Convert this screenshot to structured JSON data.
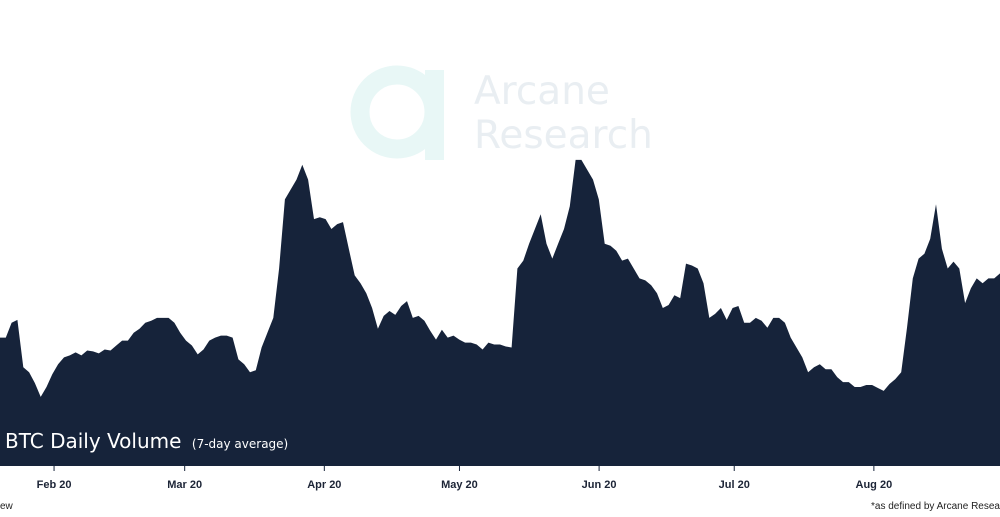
{
  "watermark": {
    "line1": "Arcane",
    "line2": "Research",
    "logo_icon": "arcane-a-logo-icon",
    "color": "#e9eef2",
    "logo_color": "#e8f7f6"
  },
  "footer": {
    "left_text": "ew",
    "right_text": "*as defined by Arcane Resea"
  },
  "chart_data": {
    "type": "area",
    "title": "BTC Daily Volume",
    "subtitle": "(7-day average)",
    "fill_color": "#16233a",
    "background": "#ffffff",
    "grid": false,
    "legend": "none",
    "x_start": "2020-01-20",
    "x_range": [
      "2020-01-20",
      "2020-08-29"
    ],
    "xticks": [
      {
        "date": "2020-02-01",
        "label": "Feb 20"
      },
      {
        "date": "2020-03-01",
        "label": "Mar 20"
      },
      {
        "date": "2020-04-01",
        "label": "Apr 20"
      },
      {
        "date": "2020-05-01",
        "label": "May 20"
      },
      {
        "date": "2020-06-01",
        "label": "Jun 20"
      },
      {
        "date": "2020-07-01",
        "label": "Jul 20"
      },
      {
        "date": "2020-08-01",
        "label": "Aug 20"
      }
    ],
    "ylim": [
      0,
      320
    ],
    "values": [
      130,
      130,
      145,
      148,
      100,
      95,
      84,
      70,
      80,
      93,
      103,
      110,
      112,
      115,
      112,
      117,
      116,
      114,
      118,
      117,
      122,
      127,
      127,
      135,
      139,
      145,
      147,
      150,
      150,
      150,
      145,
      135,
      127,
      122,
      113,
      118,
      127,
      130,
      132,
      132,
      130,
      108,
      103,
      95,
      97,
      120,
      135,
      150,
      200,
      270,
      280,
      290,
      305,
      290,
      250,
      252,
      250,
      240,
      245,
      247,
      220,
      193,
      185,
      175,
      160,
      139,
      152,
      157,
      153,
      162,
      167,
      150,
      152,
      147,
      137,
      128,
      138,
      130,
      132,
      128,
      125,
      125,
      123,
      118,
      125,
      123,
      123,
      121,
      120,
      200,
      208,
      225,
      240,
      255,
      225,
      210,
      225,
      240,
      263,
      310,
      310,
      300,
      290,
      270,
      225,
      223,
      218,
      208,
      210,
      200,
      190,
      188,
      183,
      175,
      160,
      163,
      173,
      170,
      205,
      203,
      200,
      185,
      150,
      154,
      160,
      148,
      160,
      162,
      145,
      145,
      150,
      147,
      140,
      150,
      150,
      145,
      130,
      120,
      110,
      95,
      100,
      103,
      98,
      98,
      90,
      85,
      85,
      80,
      80,
      82,
      82,
      79,
      76,
      83,
      88,
      95,
      140,
      190,
      210,
      215,
      230,
      265,
      220,
      200,
      207,
      200,
      165,
      180,
      190,
      185,
      190,
      190,
      195
    ]
  }
}
